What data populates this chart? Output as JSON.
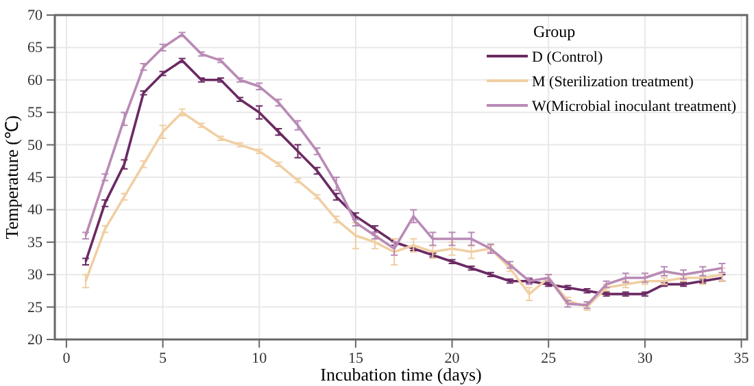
{
  "chart_data": {
    "type": "line",
    "xlabel": "Incubation time (days)",
    "ylabel": "Temperature (℃)",
    "legend_title": "Group",
    "legend": "top right",
    "grid": true,
    "line_style": "solid",
    "xlim": [
      -0.6,
      35.3
    ],
    "xticks": [
      0,
      5,
      10,
      15,
      20,
      25,
      30,
      35
    ],
    "ylim": [
      20,
      70
    ],
    "yticks": [
      20,
      25,
      30,
      35,
      40,
      45,
      50,
      55,
      60,
      65,
      70
    ],
    "x": [
      1,
      2,
      3,
      4,
      5,
      6,
      7,
      8,
      9,
      10,
      11,
      12,
      13,
      14,
      15,
      16,
      17,
      18,
      19,
      20,
      21,
      22,
      23,
      24,
      25,
      26,
      27,
      28,
      29,
      30,
      31,
      32,
      33,
      34
    ],
    "series": [
      {
        "name": "D (Control)",
        "color": "#6b2a63",
        "values": [
          32,
          41,
          47,
          58,
          61,
          63,
          60,
          60,
          57,
          55,
          52,
          49,
          46,
          42,
          39,
          37,
          35,
          34,
          33,
          32,
          31,
          30,
          29,
          29,
          28.5,
          28,
          27.5,
          27,
          27,
          27,
          28.5,
          28.5,
          29,
          29.5
        ],
        "errors": [
          0.5,
          0.5,
          0.7,
          0.3,
          0.3,
          0.3,
          0.3,
          0.3,
          0.3,
          1,
          0.5,
          1,
          0.5,
          0.5,
          0.5,
          0.5,
          0.5,
          0.3,
          0.3,
          0.3,
          0.3,
          0.3,
          0.3,
          0.3,
          0.3,
          0.3,
          0.3,
          0.3,
          0.3,
          0.3,
          0.3,
          0.3,
          0.3,
          0.5
        ]
      },
      {
        "name": "M (Sterilization treatment)",
        "color": "#f0cfa3",
        "values": [
          29,
          37,
          42,
          47,
          52,
          55,
          53,
          51,
          50,
          49,
          47,
          44.5,
          42,
          38.5,
          36,
          35,
          33.5,
          34.5,
          33.5,
          34,
          33.5,
          34,
          31,
          27,
          29.5,
          26,
          25,
          28,
          28.5,
          29,
          29,
          29.5,
          29.5,
          30
        ],
        "errors": [
          1,
          0.5,
          0.5,
          0.5,
          1,
          0.5,
          0.3,
          0.3,
          0.3,
          0.3,
          0.3,
          0.3,
          0.3,
          0.5,
          2,
          1,
          2,
          1,
          1,
          1,
          1,
          0.5,
          0.5,
          1,
          0.5,
          0.5,
          0.5,
          0.5,
          0.5,
          0.5,
          0.5,
          0.5,
          1,
          1
        ]
      },
      {
        "name": "W(Microbial inoculant treatment)",
        "color": "#b98ab5",
        "values": [
          36,
          45,
          54,
          62,
          65,
          67,
          64,
          63,
          60,
          59,
          56.5,
          53,
          49,
          44,
          38,
          36,
          34,
          39,
          35.5,
          35.5,
          35.5,
          34,
          31.5,
          29,
          29.5,
          25.5,
          25.3,
          28.5,
          29.5,
          29.5,
          30.5,
          30,
          30.5,
          31
        ],
        "errors": [
          0.5,
          0.5,
          1,
          0.5,
          0.5,
          0.3,
          0.3,
          0.3,
          0.3,
          0.5,
          0.5,
          0.7,
          0.5,
          1,
          0.5,
          0.5,
          1,
          1,
          1,
          1,
          1,
          0.7,
          0.5,
          0.5,
          0.5,
          0.5,
          0.5,
          0.5,
          0.7,
          0.7,
          0.7,
          0.7,
          0.7,
          0.7
        ]
      }
    ]
  }
}
